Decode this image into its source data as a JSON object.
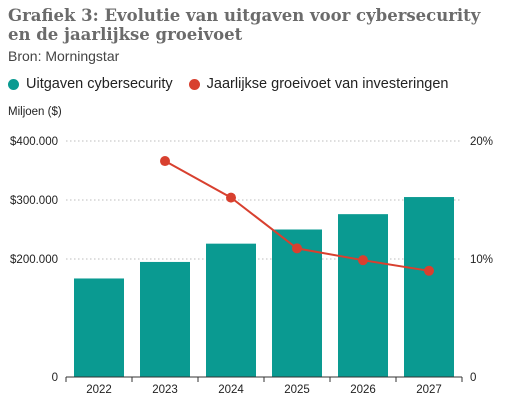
{
  "header": {
    "title": "Grafiek 3: Evolutie van uitgaven voor cybersecurity en de jaarlijkse groeivoet",
    "source": "Bron: Morningstar"
  },
  "legend": {
    "bar_label": "Uitgaven cybersecurity",
    "line_label": "Jaarlijkse groeivoet van investeringen"
  },
  "axis": {
    "y_left_label": "Miljoen ($)"
  },
  "colors": {
    "bar": "#0a9a91",
    "line": "#d8402f"
  },
  "chart_data": {
    "type": "bar",
    "title": "Grafiek 3: Evolutie van uitgaven voor cybersecurity en de jaarlijkse groeivoet",
    "ylabel": "Miljoen ($)",
    "categories": [
      "2022",
      "2023",
      "2024",
      "2025",
      "2026",
      "2027"
    ],
    "ylim": [
      0,
      400000
    ],
    "y_ticks": [
      0,
      200000,
      300000,
      400000
    ],
    "y_tick_labels": [
      "0",
      "$200.000",
      "$300.000",
      "$400.000"
    ],
    "y2lim": [
      0,
      20
    ],
    "y2_ticks": [
      0,
      10,
      20
    ],
    "y2_tick_labels": [
      "0",
      "10%",
      "20%"
    ],
    "grid": true,
    "legend_position": "top-left",
    "series": [
      {
        "name": "Uitgaven cybersecurity",
        "type": "bar",
        "axis": "left",
        "values": [
          167000,
          195000,
          226000,
          250000,
          276000,
          305000
        ]
      },
      {
        "name": "Jaarlijkse groeivoet van investeringen",
        "type": "line",
        "axis": "right",
        "values": [
          null,
          18.3,
          15.2,
          10.9,
          9.9,
          9.0
        ]
      }
    ]
  }
}
